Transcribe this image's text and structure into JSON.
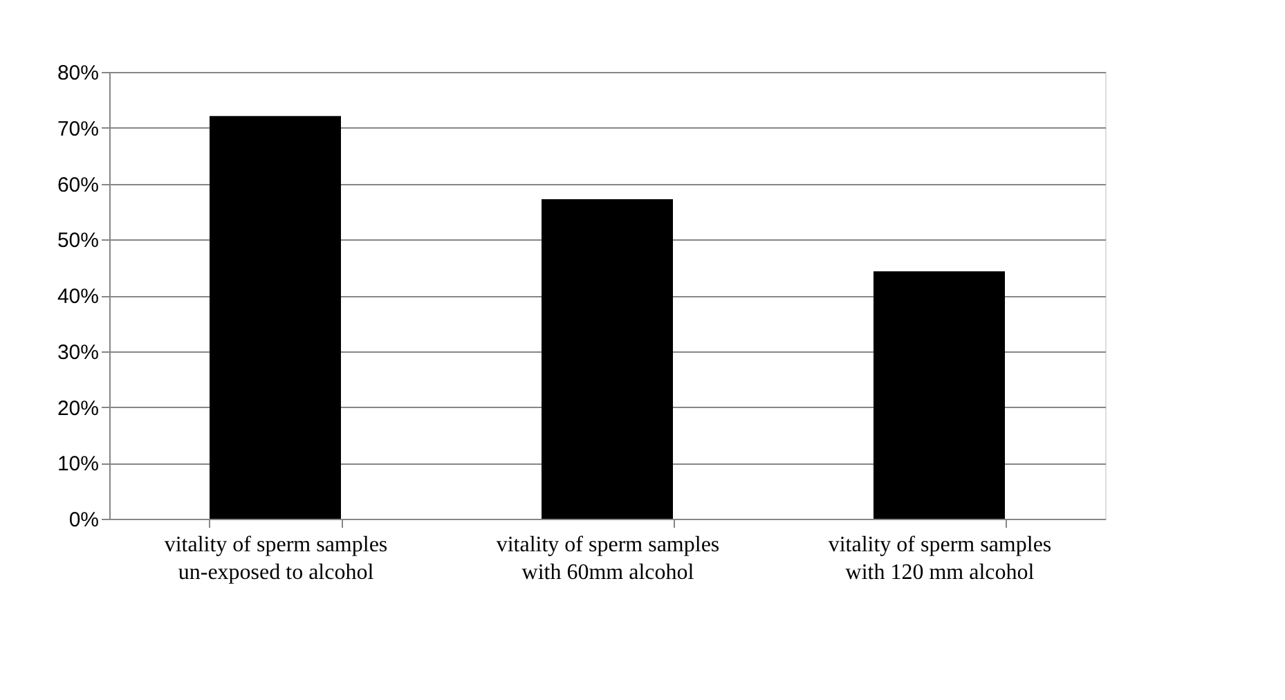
{
  "chart_data": {
    "type": "bar",
    "categories": [
      "vitality of sperm samples\nun-exposed  to alcohol",
      "vitality of sperm samples\nwith 60mm alcohol",
      "vitality of sperm samples\nwith 120 mm alcohol"
    ],
    "values": [
      72.1,
      57.2,
      44.3
    ],
    "color": "#000000",
    "ylim": [
      0,
      80
    ],
    "yticks": [
      {
        "value": 0,
        "label": "0%"
      },
      {
        "value": 10,
        "label": "10%"
      },
      {
        "value": 20,
        "label": "20%"
      },
      {
        "value": 30,
        "label": "30%"
      },
      {
        "value": 40,
        "label": "40%"
      },
      {
        "value": 50,
        "label": "50%"
      },
      {
        "value": 60,
        "label": "60%"
      },
      {
        "value": 70,
        "label": "70%"
      },
      {
        "value": 80,
        "label": "80%"
      }
    ],
    "grid": "y"
  }
}
